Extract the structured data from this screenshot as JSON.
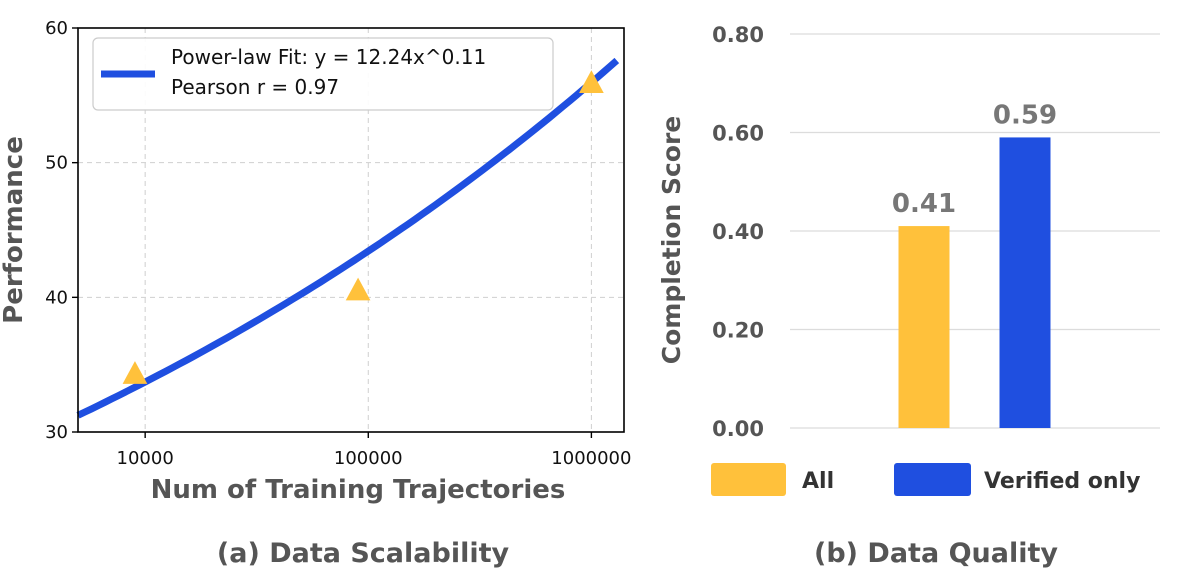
{
  "chart_data": [
    {
      "type": "scatter",
      "caption": "(a) Data Scalability",
      "xlabel": "Num of Training Trajectories",
      "ylabel": "Performance",
      "xscale": "log",
      "xlim": [
        5000,
        1400000
      ],
      "ylim": [
        30,
        60
      ],
      "xticks": [
        10000,
        100000,
        1000000
      ],
      "xtick_labels": [
        "10000",
        "100000",
        "1000000"
      ],
      "yticks": [
        30,
        40,
        50,
        60
      ],
      "ytick_labels": [
        "30",
        "40",
        "50",
        "60"
      ],
      "grid": true,
      "points": [
        {
          "x": 9000,
          "y": 34.3
        },
        {
          "x": 90000,
          "y": 40.5
        },
        {
          "x": 1000000,
          "y": 55.9
        }
      ],
      "marker": "triangle",
      "marker_color": "#FFC13B",
      "fit": {
        "formula": "y = 12.24x^0.11",
        "a": 12.24,
        "b": 0.11,
        "color": "#1F4FE0",
        "x_range": [
          5000,
          1300000
        ]
      },
      "legend": {
        "position": "top-left",
        "line1": "Power-law Fit: y = 12.24x^0.11",
        "line2": "Pearson r = 0.97"
      }
    },
    {
      "type": "bar",
      "caption": "(b) Data Quality",
      "ylabel": "Completion Score",
      "ylim": [
        0,
        0.8
      ],
      "yticks": [
        0,
        0.2,
        0.4,
        0.6,
        0.8
      ],
      "ytick_labels": [
        "0.00",
        "0.20",
        "0.40",
        "0.60",
        "0.80"
      ],
      "grid": true,
      "series": [
        {
          "name": "All",
          "value": 0.41,
          "label": "0.41",
          "color": "#FFC13B"
        },
        {
          "name": "Verified only",
          "value": 0.59,
          "label": "0.59",
          "color": "#1F4FE0"
        }
      ],
      "legend_position": "bottom"
    }
  ]
}
